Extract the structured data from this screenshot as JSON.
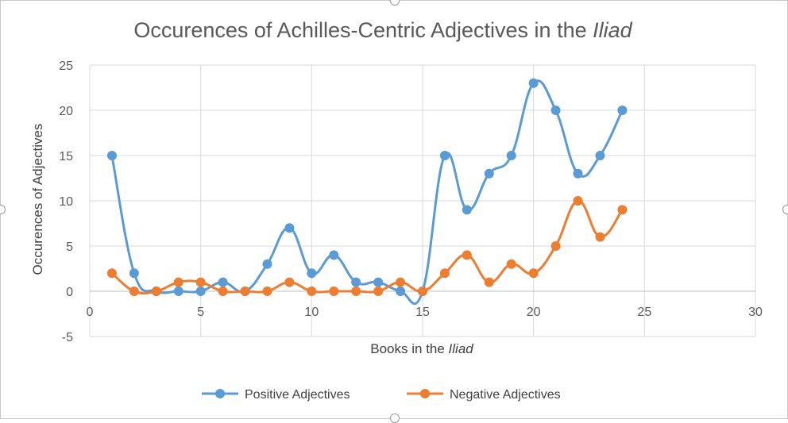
{
  "chart_data": {
    "type": "scatter",
    "title": {
      "main": "Occurences of Achilles-Centric Adjectives in the ",
      "italic": "Iliad"
    },
    "xlabel": {
      "main": "Books in the ",
      "italic": "Iliad"
    },
    "ylabel": "Occurences of Adjectives",
    "xlim": [
      0,
      30
    ],
    "ylim": [
      -5,
      25
    ],
    "x_ticks": [
      "0",
      "5",
      "10",
      "15",
      "20",
      "25",
      "30"
    ],
    "y_ticks": [
      "-5",
      "0",
      "5",
      "10",
      "15",
      "20",
      "25"
    ],
    "grid": true,
    "legend_position": "bottom",
    "smooth_lines": true,
    "x": [
      1,
      2,
      3,
      4,
      5,
      6,
      7,
      8,
      9,
      10,
      11,
      12,
      13,
      14,
      15,
      16,
      17,
      18,
      19,
      20,
      21,
      22,
      23,
      24
    ],
    "series": [
      {
        "name": "Positive Adjectives",
        "color": "#5b9bd5",
        "values": [
          15,
          2,
          0,
          0,
          0,
          1,
          0,
          3,
          7,
          2,
          4,
          1,
          1,
          0,
          0,
          15,
          9,
          13,
          15,
          23,
          20,
          13,
          15,
          20
        ]
      },
      {
        "name": "Negative Adjectives",
        "color": "#ed7d31",
        "values": [
          2,
          0,
          0,
          1,
          1,
          0,
          0,
          0,
          1,
          0,
          0,
          0,
          0,
          1,
          0,
          2,
          4,
          1,
          3,
          2,
          5,
          10,
          6,
          9
        ]
      }
    ]
  }
}
